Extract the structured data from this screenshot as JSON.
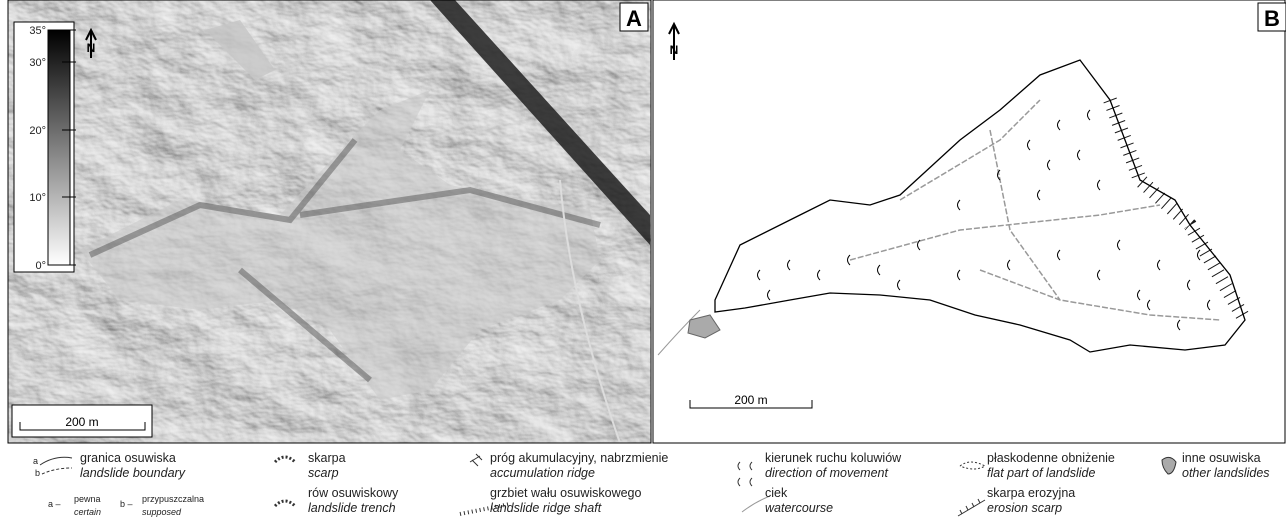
{
  "panels": [
    {
      "label": "A",
      "north": "N",
      "scale": "200 m",
      "slope_legend": [
        "35°",
        "30°",
        "20°",
        "10°",
        "0°"
      ]
    },
    {
      "label": "B",
      "north": "N",
      "scale": "200 m"
    }
  ],
  "legend": [
    {
      "pl": "granica osuwiska",
      "en": "landslide boundary",
      "a": "a",
      "b": "b",
      "a_label": "a –",
      "a_pl": "pewna",
      "a_en": "certain",
      "b_label": "b –",
      "b_pl": "przypuszczalna",
      "b_en": "supposed"
    },
    {
      "pl": "skarpa",
      "en": "scarp"
    },
    {
      "pl": "rów osuwiskowy",
      "en": "landslide trench"
    },
    {
      "pl": "próg akumulacyjny, nabrzmienie",
      "en": "accumulation ridge"
    },
    {
      "pl": "grzbiet wału osuwiskowego",
      "en": "landslide ridge shaft"
    },
    {
      "pl": "kierunek ruchu koluwiów",
      "en": "direction of movement"
    },
    {
      "pl": "ciek",
      "en": "watercourse"
    },
    {
      "pl": "płaskodenne obniżenie",
      "en": "flat part of landslide"
    },
    {
      "pl": "skarpa erozyjna",
      "en": "erosion scarp"
    },
    {
      "pl": "inne osuwiska",
      "en": "other landslides"
    }
  ]
}
